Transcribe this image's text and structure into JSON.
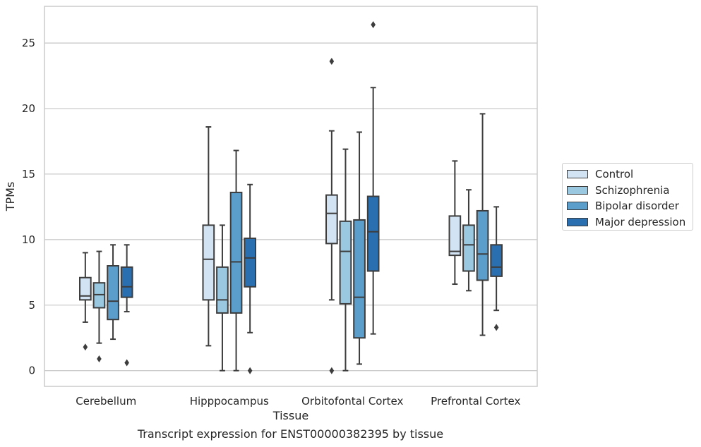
{
  "chart_data": {
    "type": "box",
    "title": "",
    "caption": "Transcript expression for ENST00000382395 by tissue",
    "xlabel": "Tissue",
    "ylabel": "TPMs",
    "ylim": [
      -1.2,
      27.8
    ],
    "yticks": [
      0,
      5,
      10,
      15,
      20,
      25
    ],
    "grid": true,
    "legend_position": "right",
    "categories": [
      "Cerebellum",
      "Hipppocampus",
      "Orbitofontal Cortex",
      "Prefrontal Cortex"
    ],
    "series": [
      {
        "name": "Control",
        "color": "#d2e3f3",
        "boxes": [
          {
            "whislo": 3.7,
            "q1": 5.4,
            "med": 5.7,
            "q3": 7.1,
            "whishi": 9.0,
            "fliers": [
              1.8
            ]
          },
          {
            "whislo": 1.9,
            "q1": 5.4,
            "med": 8.5,
            "q3": 11.1,
            "whishi": 18.6,
            "fliers": []
          },
          {
            "whislo": 5.4,
            "q1": 9.7,
            "med": 12.0,
            "q3": 13.4,
            "whishi": 18.3,
            "fliers": [
              0.0,
              23.6
            ]
          },
          {
            "whislo": 6.6,
            "q1": 8.8,
            "med": 9.1,
            "q3": 11.8,
            "whishi": 16.0,
            "fliers": []
          }
        ]
      },
      {
        "name": "Schizophrenia",
        "color": "#9ac8e0",
        "boxes": [
          {
            "whislo": 2.1,
            "q1": 4.8,
            "med": 5.8,
            "q3": 6.7,
            "whishi": 9.1,
            "fliers": [
              0.9
            ]
          },
          {
            "whislo": 0.0,
            "q1": 4.4,
            "med": 5.4,
            "q3": 7.9,
            "whishi": 11.1,
            "fliers": []
          },
          {
            "whislo": 0.0,
            "q1": 5.1,
            "med": 9.1,
            "q3": 11.4,
            "whishi": 16.9,
            "fliers": []
          },
          {
            "whislo": 6.1,
            "q1": 7.6,
            "med": 9.6,
            "q3": 11.1,
            "whishi": 13.8,
            "fliers": []
          }
        ]
      },
      {
        "name": "Bipolar disorder",
        "color": "#5b9ecb",
        "boxes": [
          {
            "whislo": 2.4,
            "q1": 3.9,
            "med": 5.3,
            "q3": 8.0,
            "whishi": 9.6,
            "fliers": []
          },
          {
            "whislo": 0.0,
            "q1": 4.4,
            "med": 8.3,
            "q3": 13.6,
            "whishi": 16.8,
            "fliers": []
          },
          {
            "whislo": 0.5,
            "q1": 2.5,
            "med": 5.6,
            "q3": 11.5,
            "whishi": 18.2,
            "fliers": []
          },
          {
            "whislo": 2.7,
            "q1": 6.9,
            "med": 8.9,
            "q3": 12.2,
            "whishi": 19.6,
            "fliers": []
          }
        ]
      },
      {
        "name": "Major depression",
        "color": "#2a6fb0",
        "boxes": [
          {
            "whislo": 4.5,
            "q1": 5.6,
            "med": 6.4,
            "q3": 7.9,
            "whishi": 9.6,
            "fliers": [
              0.6
            ]
          },
          {
            "whislo": 2.9,
            "q1": 6.4,
            "med": 8.6,
            "q3": 10.1,
            "whishi": 14.2,
            "fliers": [
              0.0
            ]
          },
          {
            "whislo": 2.8,
            "q1": 7.6,
            "med": 10.6,
            "q3": 13.3,
            "whishi": 21.6,
            "fliers": [
              26.4
            ]
          },
          {
            "whislo": 4.6,
            "q1": 7.2,
            "med": 7.9,
            "q3": 9.6,
            "whishi": 12.5,
            "fliers": [
              3.3
            ]
          }
        ]
      }
    ]
  }
}
